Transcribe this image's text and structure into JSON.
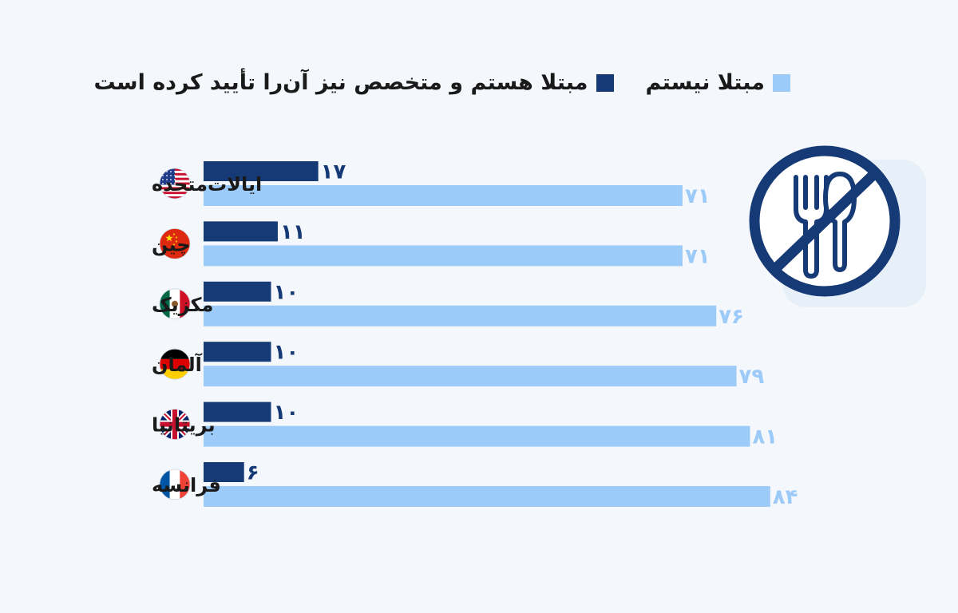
{
  "colors": {
    "series_affected": "#163a75",
    "series_not_affected": "#9ccaf9",
    "background": "#f4f7fb",
    "icon_ring": "#163a75",
    "icon_bg": "#e3ecf7"
  },
  "icon": "no-food-icon",
  "chart_data": {
    "type": "bar",
    "orientation": "horizontal",
    "legend_position": "top",
    "grid": false,
    "categories": [
      "ایالات‌متحده",
      "چین",
      "مکزیک",
      "آلمان",
      "بریتانیا",
      "فرانسه"
    ],
    "category_flags": [
      "flag-us-icon",
      "flag-cn-icon",
      "flag-mx-icon",
      "flag-de-icon",
      "flag-gb-icon",
      "flag-fr-icon"
    ],
    "series": [
      {
        "name": "مبتلا هستم و متخصص نیز آن‌را تأیید کرده است",
        "values": [
          17,
          11,
          10,
          10,
          10,
          6
        ],
        "labels": [
          "۱۷",
          "۱۱",
          "۱۰",
          "۱۰",
          "۱۰",
          "۶"
        ]
      },
      {
        "name": "مبتلا نیستم",
        "values": [
          71,
          71,
          76,
          79,
          81,
          84
        ],
        "labels": [
          "۷۱",
          "۷۱",
          "۷۶",
          "۷۹",
          "۸۱",
          "۸۴"
        ]
      }
    ],
    "xlim": [
      0,
      100
    ]
  }
}
